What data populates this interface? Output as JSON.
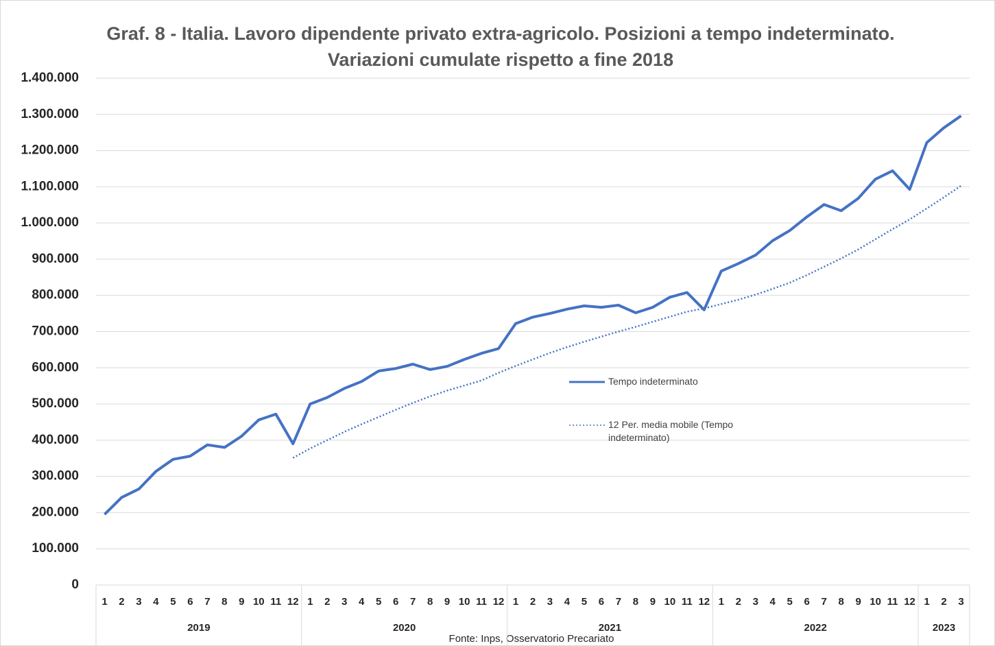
{
  "chart_data": {
    "type": "line",
    "title": "Graf. 8 - Italia. Lavoro dipendente privato extra-agricolo. Posizioni a tempo indeterminato. Variazioni cumulate rispetto a fine 2018",
    "source": "Fonte: Inps, Osservatorio Precariato",
    "categories": [
      "1",
      "2",
      "3",
      "4",
      "5",
      "6",
      "7",
      "8",
      "9",
      "10",
      "11",
      "12",
      "1",
      "2",
      "3",
      "4",
      "5",
      "6",
      "7",
      "8",
      "9",
      "10",
      "11",
      "12",
      "1",
      "2",
      "3",
      "4",
      "5",
      "6",
      "7",
      "8",
      "9",
      "10",
      "11",
      "12",
      "1",
      "2",
      "3",
      "4",
      "5",
      "6",
      "7",
      "8",
      "9",
      "10",
      "11",
      "12",
      "1",
      "2",
      "3"
    ],
    "groups": [
      {
        "label": "2019",
        "count": 12
      },
      {
        "label": "2020",
        "count": 12
      },
      {
        "label": "2021",
        "count": 12
      },
      {
        "label": "2022",
        "count": 12
      },
      {
        "label": "2023",
        "count": 3
      }
    ],
    "series": [
      {
        "name": "Tempo indeterminato",
        "color": "#4472c4",
        "dash": "solid",
        "values": [
          195000,
          242000,
          265000,
          314000,
          347000,
          356000,
          387000,
          380000,
          411000,
          456000,
          472000,
          390000,
          500000,
          518000,
          543000,
          562000,
          591000,
          598000,
          610000,
          595000,
          604000,
          623000,
          640000,
          653000,
          722000,
          740000,
          750000,
          762000,
          771000,
          767000,
          773000,
          752000,
          767000,
          795000,
          808000,
          760000,
          867000,
          888000,
          911000,
          951000,
          979000,
          1017000,
          1051000,
          1034000,
          1068000,
          1121000,
          1144000,
          1093000,
          1222000,
          1263000,
          1296000
        ]
      },
      {
        "name": "12 Per. media mobile (Tempo indeterminato)",
        "color": "#4472c4",
        "dash": "dotted",
        "values": [
          null,
          null,
          null,
          null,
          null,
          null,
          null,
          null,
          null,
          null,
          null,
          351000,
          377000,
          400000,
          423000,
          444000,
          464000,
          484000,
          503000,
          521000,
          537000,
          551000,
          565000,
          586000,
          605000,
          623000,
          641000,
          657000,
          672000,
          686000,
          700000,
          713000,
          727000,
          741000,
          755000,
          764000,
          776000,
          788000,
          802000,
          818000,
          835000,
          856000,
          879000,
          902000,
          927000,
          955000,
          983000,
          1010000,
          1040000,
          1071000,
          1103000
        ]
      }
    ],
    "ylim": [
      0,
      1400000
    ],
    "yticks": [
      0,
      {
        "value": 100000,
        "label": "100.000"
      },
      {
        "value": 200000,
        "label": "200.000"
      },
      {
        "value": 300000,
        "label": "300.000"
      },
      {
        "value": 400000,
        "label": "400.000"
      },
      {
        "value": 500000,
        "label": "500.000"
      },
      {
        "value": 600000,
        "label": "600.000"
      },
      {
        "value": 700000,
        "label": "700.000"
      },
      {
        "value": 800000,
        "label": "800.000"
      },
      {
        "value": 900000,
        "label": "900.000"
      },
      {
        "value": 1000000,
        "label": "1.000.000"
      },
      {
        "value": 1100000,
        "label": "1.100.000"
      },
      {
        "value": 1200000,
        "label": "1.200.000"
      },
      {
        "value": 1300000,
        "label": "1.300.000"
      },
      {
        "value": 1400000,
        "label": "1.400.000"
      }
    ],
    "grid": true
  }
}
